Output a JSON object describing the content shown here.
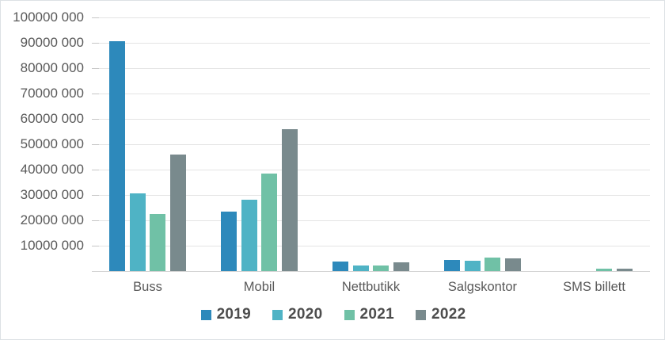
{
  "chart_data": {
    "type": "bar",
    "title": "",
    "xlabel": "",
    "ylabel": "",
    "grid": true,
    "legend_position": "bottom",
    "ylim": [
      0,
      100000000
    ],
    "yticks": [
      {
        "value": 100000000,
        "label": "100000 000"
      },
      {
        "value": 90000000,
        "label": "90000 000"
      },
      {
        "value": 80000000,
        "label": "80000 000"
      },
      {
        "value": 70000000,
        "label": "70000 000"
      },
      {
        "value": 60000000,
        "label": "60000 000"
      },
      {
        "value": 50000000,
        "label": "50000 000"
      },
      {
        "value": 40000000,
        "label": "40000 000"
      },
      {
        "value": 30000000,
        "label": "30000 000"
      },
      {
        "value": 20000000,
        "label": "20000 000"
      },
      {
        "value": 10000000,
        "label": "10000 000"
      }
    ],
    "categories": [
      "Buss",
      "Mobil",
      "Nettbutikk",
      "Salgskontor",
      "SMS billett"
    ],
    "series": [
      {
        "name": "2019",
        "color": "#2d89bb",
        "values": [
          90500000,
          23500000,
          3600000,
          4500000,
          0
        ]
      },
      {
        "name": "2020",
        "color": "#4fb3c5",
        "values": [
          30500000,
          28000000,
          2100000,
          4000000,
          0
        ]
      },
      {
        "name": "2021",
        "color": "#70c1a6",
        "values": [
          22500000,
          38500000,
          2300000,
          5200000,
          1000000
        ]
      },
      {
        "name": "2022",
        "color": "#798a8d",
        "values": [
          46000000,
          56000000,
          3500000,
          5000000,
          800000
        ]
      }
    ]
  },
  "colors": {
    "grid": "#e4e4e4",
    "axis_line": "#d2d2d2",
    "axis_text": "#595959",
    "legend_text": "#4d4d4d",
    "background": "#ffffff"
  }
}
